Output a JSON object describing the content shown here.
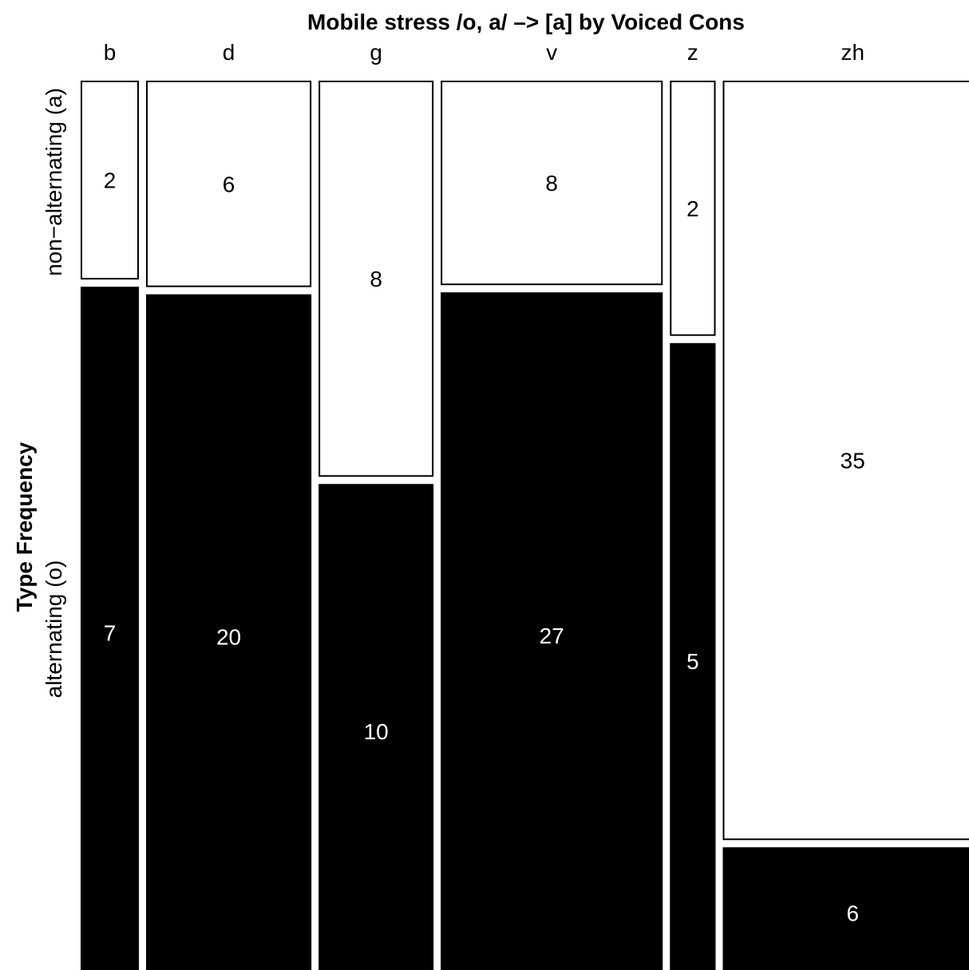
{
  "chart_data": {
    "type": "mosaic",
    "title": "Mobile stress /o, a/ –> [a] by Voiced Cons",
    "ylabel": "Type Frequency",
    "categories": [
      "b",
      "d",
      "g",
      "v",
      "z",
      "zh"
    ],
    "levels": [
      "non−alternating (a)",
      "alternating (o)"
    ],
    "series": [
      {
        "name": "non−alternating (a)",
        "values": [
          2,
          6,
          8,
          8,
          2,
          35
        ]
      },
      {
        "name": "alternating (o)",
        "values": [
          7,
          20,
          10,
          27,
          5,
          6
        ]
      }
    ],
    "colors": {
      "non_alternating": "#ffffff",
      "alternating": "#000000",
      "border": "#000000"
    }
  }
}
